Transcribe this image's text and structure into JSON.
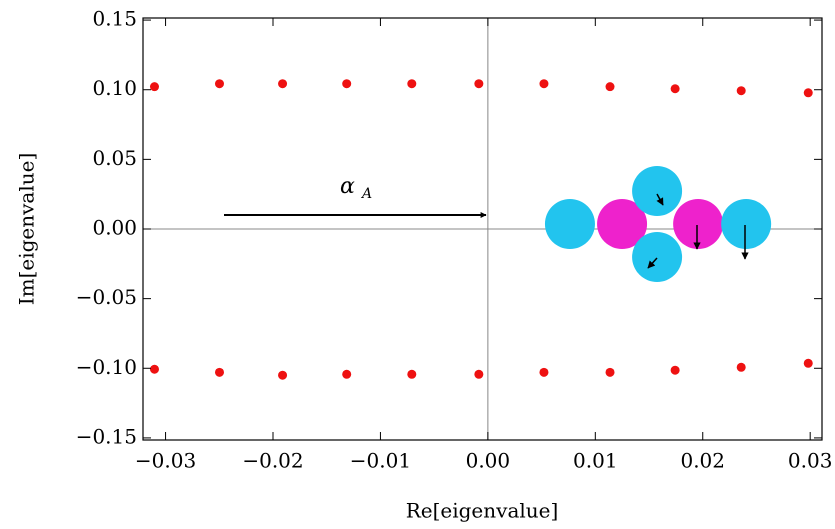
{
  "chart_data": {
    "type": "scatter",
    "x_label": "Re[eigenvalue]",
    "y_label": "Im[eigenvalue]",
    "annotation": {
      "symbol": "α",
      "subscript": "A"
    },
    "xlim": [
      -0.0321,
      0.0311
    ],
    "ylim": [
      -0.1515,
      0.1515
    ],
    "xticks": [
      {
        "value": -0.03,
        "label": "−0.03"
      },
      {
        "value": -0.02,
        "label": "−0.02"
      },
      {
        "value": -0.01,
        "label": "−0.01"
      },
      {
        "value": 0,
        "label": "0.00"
      },
      {
        "value": 0.01,
        "label": "0.01"
      },
      {
        "value": 0.02,
        "label": "0.02"
      },
      {
        "value": 0.03,
        "label": "0.03"
      }
    ],
    "yticks": [
      {
        "value": -0.15,
        "label": "−0.15"
      },
      {
        "value": -0.1,
        "label": "−0.10"
      },
      {
        "value": -0.05,
        "label": "−0.05"
      },
      {
        "value": 0,
        "label": "0.00"
      },
      {
        "value": 0.05,
        "label": "0.05"
      },
      {
        "value": 0.1,
        "label": "0.10"
      },
      {
        "value": 0.15,
        "label": "0.15"
      }
    ],
    "zero_lines": true,
    "series": [
      {
        "color": "#ee1111",
        "x": [
          -0.03103,
          -0.02498,
          -0.01911,
          -0.01314,
          -0.00708,
          -0.00084,
          0.00522,
          0.01137,
          0.01743,
          0.02358,
          0.02982,
          -0.03103,
          -0.02498,
          -0.01911,
          -0.01314,
          -0.00708,
          -0.00084,
          0.00522,
          0.01137,
          0.01743,
          0.02358,
          0.02982
        ],
        "values": [
          0.1022,
          0.1043,
          0.1043,
          0.1043,
          0.1043,
          0.1043,
          0.1043,
          0.1022,
          0.1007,
          0.0993,
          0.0978,
          -0.1007,
          -0.1029,
          -0.105,
          -0.1043,
          -0.1043,
          -0.1043,
          -0.1029,
          -0.1029,
          -0.1014,
          -0.0993,
          -0.0964
        ]
      },
      {
        "color": "#ee22cc",
        "x": [
          0.01249,
          0.01957
        ],
        "values": [
          0.0036,
          0.0036
        ]
      },
      {
        "color": "#22c4ee",
        "x": [
          0.00764,
          0.01575,
          0.01575,
          0.02404
        ],
        "values": [
          0.0036,
          0.0273,
          -0.0201,
          0.0036
        ]
      }
    ]
  }
}
